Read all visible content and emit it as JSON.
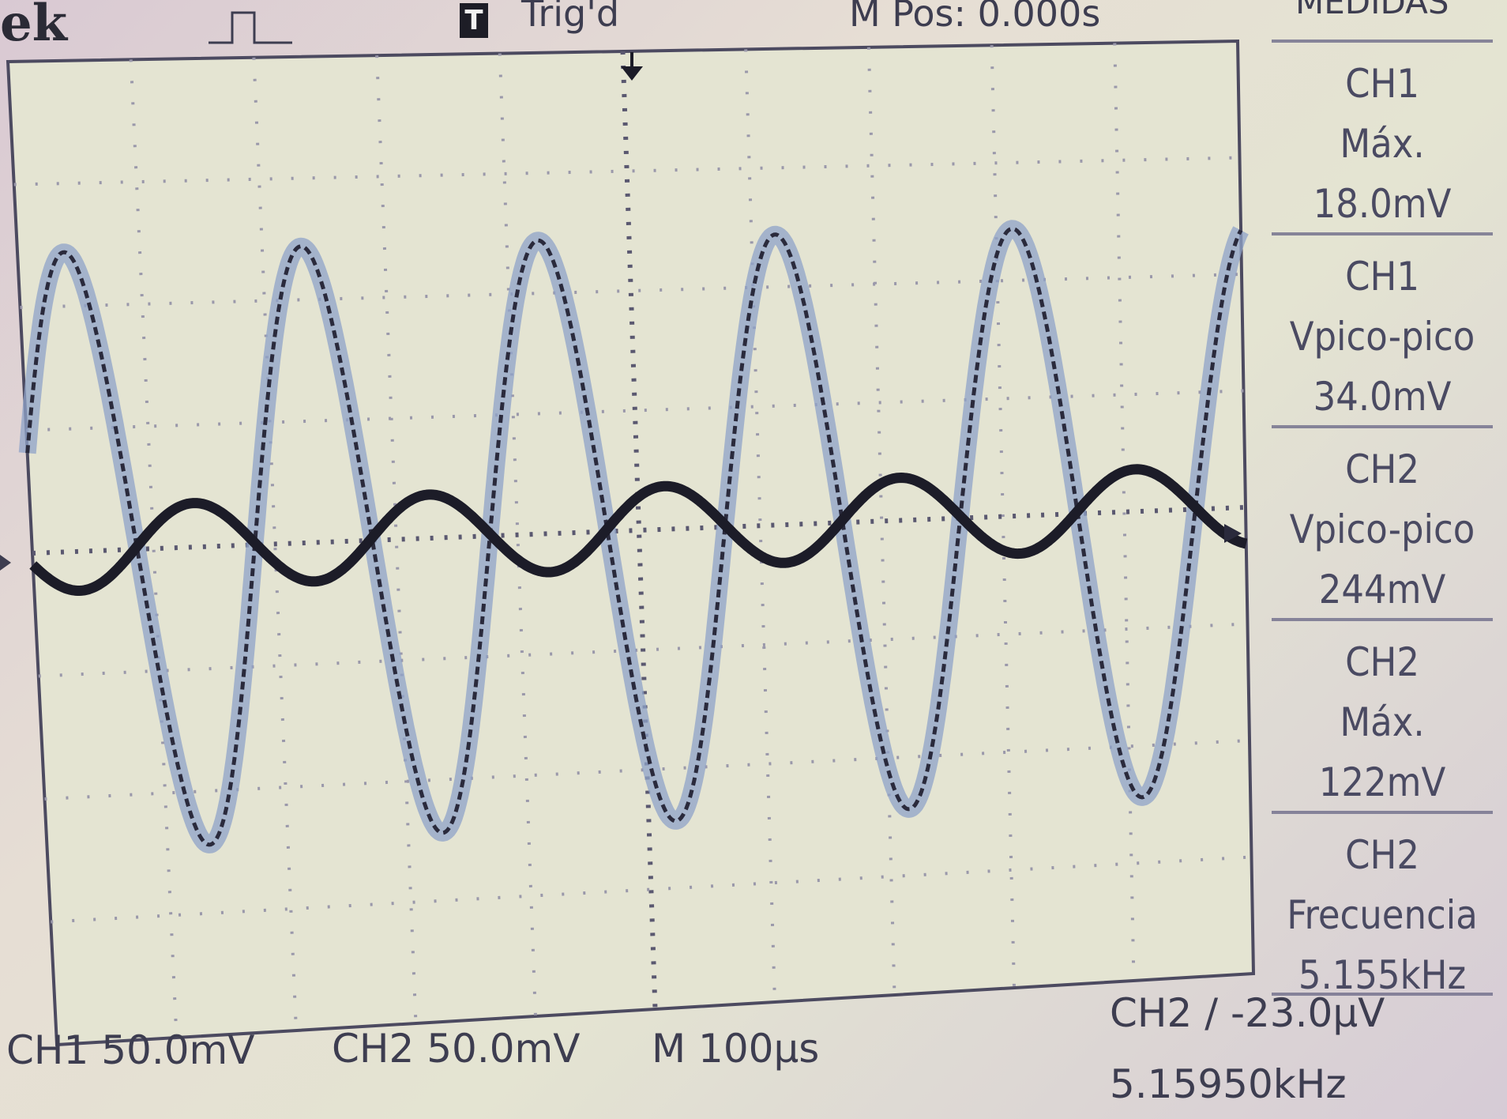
{
  "header": {
    "brand": "ek",
    "trigger_badge": "T",
    "trigger_status": "Trig'd",
    "horizontal_position": "M Pos: 0.000s",
    "menu_title": "MEDIDAS"
  },
  "measurements": [
    {
      "source": "CH1",
      "label": "Máx.",
      "value": "18.0mV"
    },
    {
      "source": "CH1",
      "label": "Vpico-pico",
      "value": "34.0mV"
    },
    {
      "source": "CH2",
      "label": "Vpico-pico",
      "value": "244mV"
    },
    {
      "source": "CH2",
      "label": "Máx.",
      "value": "122mV"
    },
    {
      "source": "CH2",
      "label": "Frecuencia",
      "value": "5.155kHz"
    }
  ],
  "footer": {
    "ch1_scale": "CH1  50.0mV",
    "ch2_scale": "CH2  50.0mV",
    "timebase": "M 100μs",
    "trigger": "CH2 ∕ -23.0μV",
    "frequency": "5.15950kHz"
  },
  "colors": {
    "screen_bg": "#e4e4d2",
    "grid_dot": "#9a98aa",
    "trace_ch1": "#1c1c28",
    "trace_ch2_halo": "#8fa3c8",
    "trace_ch2_core": "#2a2a3c"
  },
  "chart_data": {
    "type": "line",
    "xlim": [
      -500,
      500
    ],
    "ylim": [
      -200,
      200
    ],
    "series": [
      {
        "frequency_khz": 5.1595,
        "peak_mv": 17,
        "offset_mv": 1,
        "phase": 0.85
      },
      {
        "frequency_khz": 5.1595,
        "peak_mv": 122,
        "offset_mv": 0,
        "phase": -2.3
      }
    ]
  }
}
